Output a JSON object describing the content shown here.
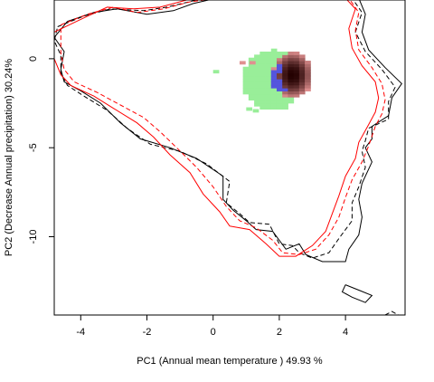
{
  "chart_data": {
    "type": "scatter",
    "xlabel": "PC1 (Annual mean temperature ) 49.93 %",
    "ylabel": "PC2 (Decrease Annual precipitation) 30.24%",
    "xlim": [
      -4.8,
      5.8
    ],
    "ylim": [
      -14.4,
      3.3
    ],
    "x_ticks": [
      -4,
      -2,
      0,
      2,
      4
    ],
    "y_ticks": [
      0,
      -5,
      -10
    ],
    "series": [
      {
        "color": "#000000",
        "style": "solid",
        "points": [
          [
            -4.4,
            2.1
          ],
          [
            -3.6,
            2.6
          ],
          [
            -2.9,
            2.8
          ],
          [
            -2.0,
            2.5
          ],
          [
            -1.2,
            2.7
          ],
          [
            -0.6,
            3.1
          ],
          [
            0.1,
            3.4
          ],
          [
            4.4,
            3.4
          ],
          [
            4.6,
            2.5
          ],
          [
            4.5,
            1.5
          ],
          [
            4.7,
            0.5
          ],
          [
            5.2,
            -0.5
          ],
          [
            5.7,
            -1.4
          ],
          [
            5.4,
            -2.2
          ],
          [
            5.3,
            -3.2
          ],
          [
            4.8,
            -3.8
          ],
          [
            4.8,
            -4.5
          ],
          [
            4.6,
            -5.0
          ],
          [
            4.8,
            -5.8
          ],
          [
            4.5,
            -7.0
          ],
          [
            4.4,
            -7.9
          ],
          [
            4.5,
            -8.9
          ],
          [
            4.4,
            -9.9
          ],
          [
            4.1,
            -10.7
          ],
          [
            4.0,
            -11.4
          ],
          [
            3.3,
            -11.4
          ],
          [
            2.8,
            -11.0
          ],
          [
            2.6,
            -10.4
          ],
          [
            2.2,
            -10.7
          ],
          [
            1.8,
            -9.7
          ],
          [
            1.3,
            -9.6
          ],
          [
            1.0,
            -9.1
          ],
          [
            0.6,
            -8.5
          ],
          [
            0.3,
            -7.9
          ],
          [
            0.3,
            -6.6
          ],
          [
            -0.5,
            -5.6
          ],
          [
            -1.3,
            -5.0
          ],
          [
            -2.2,
            -4.5
          ],
          [
            -2.8,
            -3.6
          ],
          [
            -3.4,
            -2.5
          ],
          [
            -4.0,
            -1.8
          ],
          [
            -4.5,
            -1.3
          ],
          [
            -4.6,
            -0.6
          ],
          [
            -4.5,
            0.4
          ],
          [
            -4.8,
            1.2
          ],
          [
            -4.4,
            2.1
          ]
        ]
      },
      {
        "color": "#000000",
        "style": "dashed",
        "points": [
          [
            -4.7,
            1.8
          ],
          [
            -3.9,
            2.4
          ],
          [
            -3.1,
            2.8
          ],
          [
            -2.1,
            2.7
          ],
          [
            -1.4,
            2.9
          ],
          [
            -0.5,
            3.3
          ],
          [
            0.3,
            3.4
          ],
          [
            4.2,
            3.4
          ],
          [
            4.5,
            2.6
          ],
          [
            4.3,
            1.5
          ],
          [
            4.6,
            0.4
          ],
          [
            5.1,
            -0.6
          ],
          [
            5.5,
            -1.6
          ],
          [
            5.3,
            -2.4
          ],
          [
            5.3,
            -3.4
          ],
          [
            4.7,
            -3.9
          ],
          [
            4.6,
            -4.6
          ],
          [
            4.5,
            -5.2
          ],
          [
            4.6,
            -6.1
          ],
          [
            4.4,
            -7.2
          ],
          [
            4.2,
            -8.1
          ],
          [
            4.2,
            -9.1
          ],
          [
            3.8,
            -10.1
          ],
          [
            3.5,
            -10.9
          ],
          [
            3.0,
            -11.2
          ],
          [
            2.6,
            -10.9
          ],
          [
            2.4,
            -10.5
          ],
          [
            2.0,
            -10.4
          ],
          [
            1.7,
            -9.3
          ],
          [
            1.1,
            -9.2
          ],
          [
            0.8,
            -8.7
          ],
          [
            0.4,
            -8.1
          ],
          [
            0.5,
            -6.9
          ],
          [
            -0.2,
            -5.9
          ],
          [
            -1.0,
            -5.2
          ],
          [
            -1.9,
            -4.8
          ],
          [
            -2.6,
            -3.9
          ],
          [
            -3.2,
            -2.9
          ],
          [
            -3.9,
            -2.1
          ],
          [
            -4.4,
            -1.5
          ],
          [
            -4.6,
            -0.8
          ],
          [
            -4.6,
            0.2
          ],
          [
            -4.8,
            1.0
          ],
          [
            -4.7,
            1.8
          ]
        ]
      },
      {
        "color": "#ff0000",
        "style": "solid",
        "points": [
          [
            -4.8,
            1.5
          ],
          [
            -3.9,
            2.3
          ],
          [
            -3.2,
            2.9
          ],
          [
            -2.4,
            2.8
          ],
          [
            -1.6,
            2.9
          ],
          [
            -0.8,
            3.3
          ],
          [
            0.0,
            3.4
          ],
          [
            4.0,
            3.4
          ],
          [
            4.3,
            2.8
          ],
          [
            4.1,
            1.7
          ],
          [
            4.2,
            0.6
          ],
          [
            4.5,
            -0.4
          ],
          [
            4.9,
            -1.3
          ],
          [
            5.0,
            -2.2
          ],
          [
            4.9,
            -3.0
          ],
          [
            4.7,
            -3.7
          ],
          [
            4.4,
            -4.7
          ],
          [
            4.3,
            -5.6
          ],
          [
            4.0,
            -6.6
          ],
          [
            3.8,
            -7.7
          ],
          [
            3.6,
            -8.7
          ],
          [
            3.4,
            -9.7
          ],
          [
            3.0,
            -10.5
          ],
          [
            2.5,
            -11.1
          ],
          [
            2.0,
            -11.1
          ],
          [
            1.6,
            -10.4
          ],
          [
            1.1,
            -9.6
          ],
          [
            0.5,
            -9.4
          ],
          [
            0.2,
            -8.6
          ],
          [
            -0.3,
            -7.6
          ],
          [
            -0.7,
            -6.4
          ],
          [
            -1.3,
            -5.4
          ],
          [
            -1.8,
            -4.4
          ],
          [
            -2.3,
            -3.6
          ],
          [
            -3.0,
            -2.8
          ],
          [
            -3.6,
            -2.1
          ],
          [
            -4.3,
            -1.5
          ],
          [
            -4.6,
            -0.9
          ],
          [
            -4.8,
            0.0
          ],
          [
            -4.8,
            1.5
          ]
        ]
      },
      {
        "color": "#ff0000",
        "style": "dashed",
        "points": [
          [
            -4.6,
            1.9
          ],
          [
            -3.8,
            2.5
          ],
          [
            -3.0,
            2.9
          ],
          [
            -2.3,
            2.6
          ],
          [
            -1.5,
            2.8
          ],
          [
            -0.7,
            3.2
          ],
          [
            0.2,
            3.4
          ],
          [
            4.1,
            3.4
          ],
          [
            4.4,
            2.6
          ],
          [
            4.3,
            1.6
          ],
          [
            4.4,
            0.5
          ],
          [
            4.8,
            -0.5
          ],
          [
            5.1,
            -1.4
          ],
          [
            5.2,
            -2.3
          ],
          [
            5.1,
            -3.1
          ],
          [
            4.9,
            -3.8
          ],
          [
            4.7,
            -4.9
          ],
          [
            4.5,
            -5.8
          ],
          [
            4.2,
            -6.8
          ],
          [
            4.0,
            -7.8
          ],
          [
            3.8,
            -8.9
          ],
          [
            3.5,
            -9.9
          ],
          [
            3.1,
            -10.7
          ],
          [
            2.6,
            -11.0
          ],
          [
            2.1,
            -10.9
          ],
          [
            1.8,
            -10.2
          ],
          [
            1.3,
            -9.5
          ],
          [
            0.8,
            -9.1
          ],
          [
            0.4,
            -8.3
          ],
          [
            0.0,
            -7.2
          ],
          [
            -0.5,
            -6.1
          ],
          [
            -1.1,
            -5.0
          ],
          [
            -1.6,
            -4.1
          ],
          [
            -2.1,
            -3.3
          ],
          [
            -2.8,
            -2.6
          ],
          [
            -3.5,
            -1.9
          ],
          [
            -4.2,
            -1.3
          ],
          [
            -4.5,
            -0.6
          ],
          [
            -4.6,
            0.3
          ],
          [
            -4.6,
            1.9
          ]
        ]
      },
      {
        "color": "#000000",
        "style": "solid",
        "points": [
          [
            4.0,
            -12.7
          ],
          [
            4.4,
            -13.0
          ],
          [
            4.8,
            -13.3
          ],
          [
            4.6,
            -13.7
          ],
          [
            4.2,
            -13.4
          ],
          [
            3.9,
            -13.1
          ],
          [
            4.0,
            -12.7
          ]
        ]
      },
      {
        "color": "#000000",
        "style": "dashed",
        "points": [
          [
            5.2,
            -14.4
          ],
          [
            5.4,
            -14.2
          ],
          [
            5.6,
            -14.4
          ]
        ]
      }
    ],
    "density": {
      "green": {
        "center": [
          1.8,
          -1.2
        ],
        "radius_x": 0.9,
        "radius_y": 1.7,
        "color": "#99ee99"
      },
      "blue": {
        "center": [
          2.1,
          -1.1
        ],
        "radius_x": 0.35,
        "radius_y": 0.8,
        "color": "#5555dd"
      },
      "red": {
        "center": [
          2.4,
          -0.9
        ],
        "radius_x": 0.6,
        "radius_y": 1.3,
        "color_light": "#e09090",
        "color_dark": "#220000"
      }
    }
  }
}
